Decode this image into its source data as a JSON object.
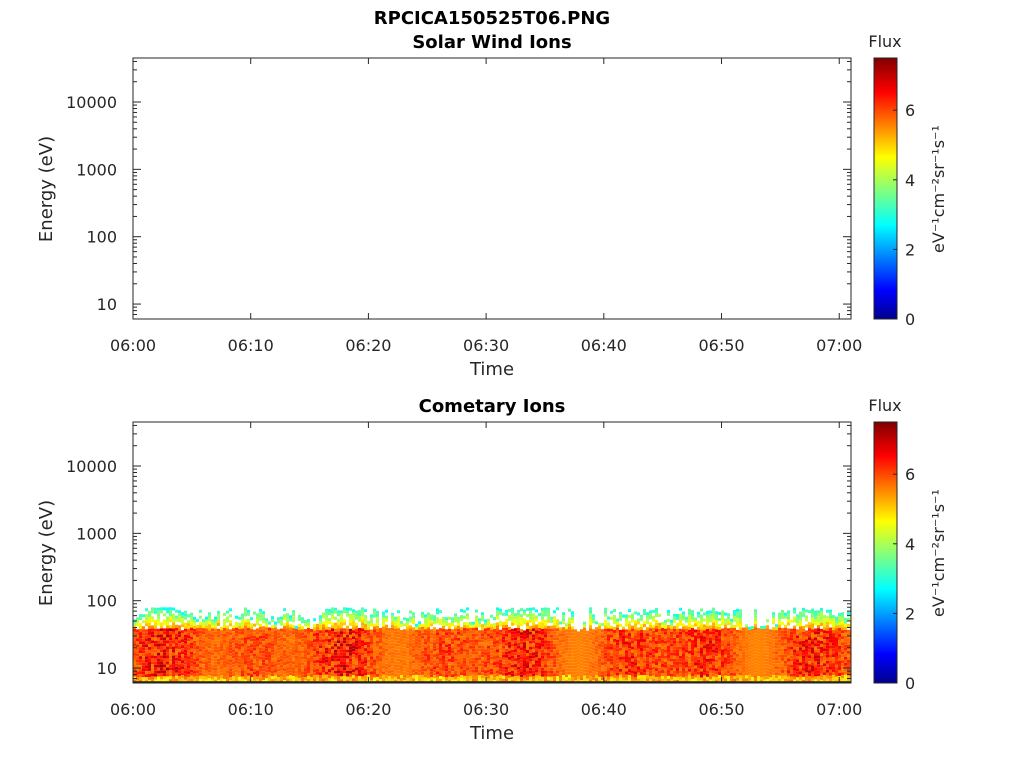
{
  "figure": {
    "title": "RPCICA150525T06.PNG"
  },
  "chart_data": [
    {
      "type": "heatmap",
      "title": "Solar Wind Ions",
      "xlabel": "Time",
      "ylabel": "Energy (eV)",
      "y_scale": "log",
      "xlim": [
        "06:00",
        "07:01"
      ],
      "ylim": [
        6,
        45000
      ],
      "x_ticks": [
        "06:00",
        "06:10",
        "06:20",
        "06:30",
        "06:40",
        "06:50",
        "07:00"
      ],
      "y_ticks": [
        10,
        100,
        1000,
        10000
      ],
      "y_tick_labels": [
        "10",
        "100",
        "1000",
        "10000"
      ],
      "colorbar": {
        "label": "Flux",
        "unit_label": "eV⁻¹cm⁻²sr⁻¹s⁻¹",
        "range": [
          0,
          7.5
        ],
        "ticks": [
          0,
          2,
          4,
          6
        ],
        "tick_labels": [
          "0",
          "2",
          "4",
          "6"
        ],
        "colormap": "jet"
      },
      "data": "empty"
    },
    {
      "type": "heatmap",
      "title": "Cometary Ions",
      "xlabel": "Time",
      "ylabel": "Energy (eV)",
      "y_scale": "log",
      "xlim": [
        "06:00",
        "07:01"
      ],
      "ylim": [
        6,
        45000
      ],
      "x_ticks": [
        "06:00",
        "06:10",
        "06:20",
        "06:30",
        "06:40",
        "06:50",
        "07:00"
      ],
      "y_ticks": [
        10,
        100,
        1000,
        10000
      ],
      "y_tick_labels": [
        "10",
        "100",
        "1000",
        "10000"
      ],
      "colorbar": {
        "label": "Flux",
        "unit_label": "eV⁻¹cm⁻²sr⁻¹s⁻¹",
        "range": [
          0,
          7.5
        ],
        "ticks": [
          0,
          2,
          4,
          6
        ],
        "tick_labels": [
          "0",
          "2",
          "4",
          "6"
        ],
        "colormap": "jet"
      },
      "energy_range": [
        6,
        80
      ],
      "peak_flux_energy_range": [
        8,
        40
      ],
      "max_flux": 7.3
    }
  ]
}
